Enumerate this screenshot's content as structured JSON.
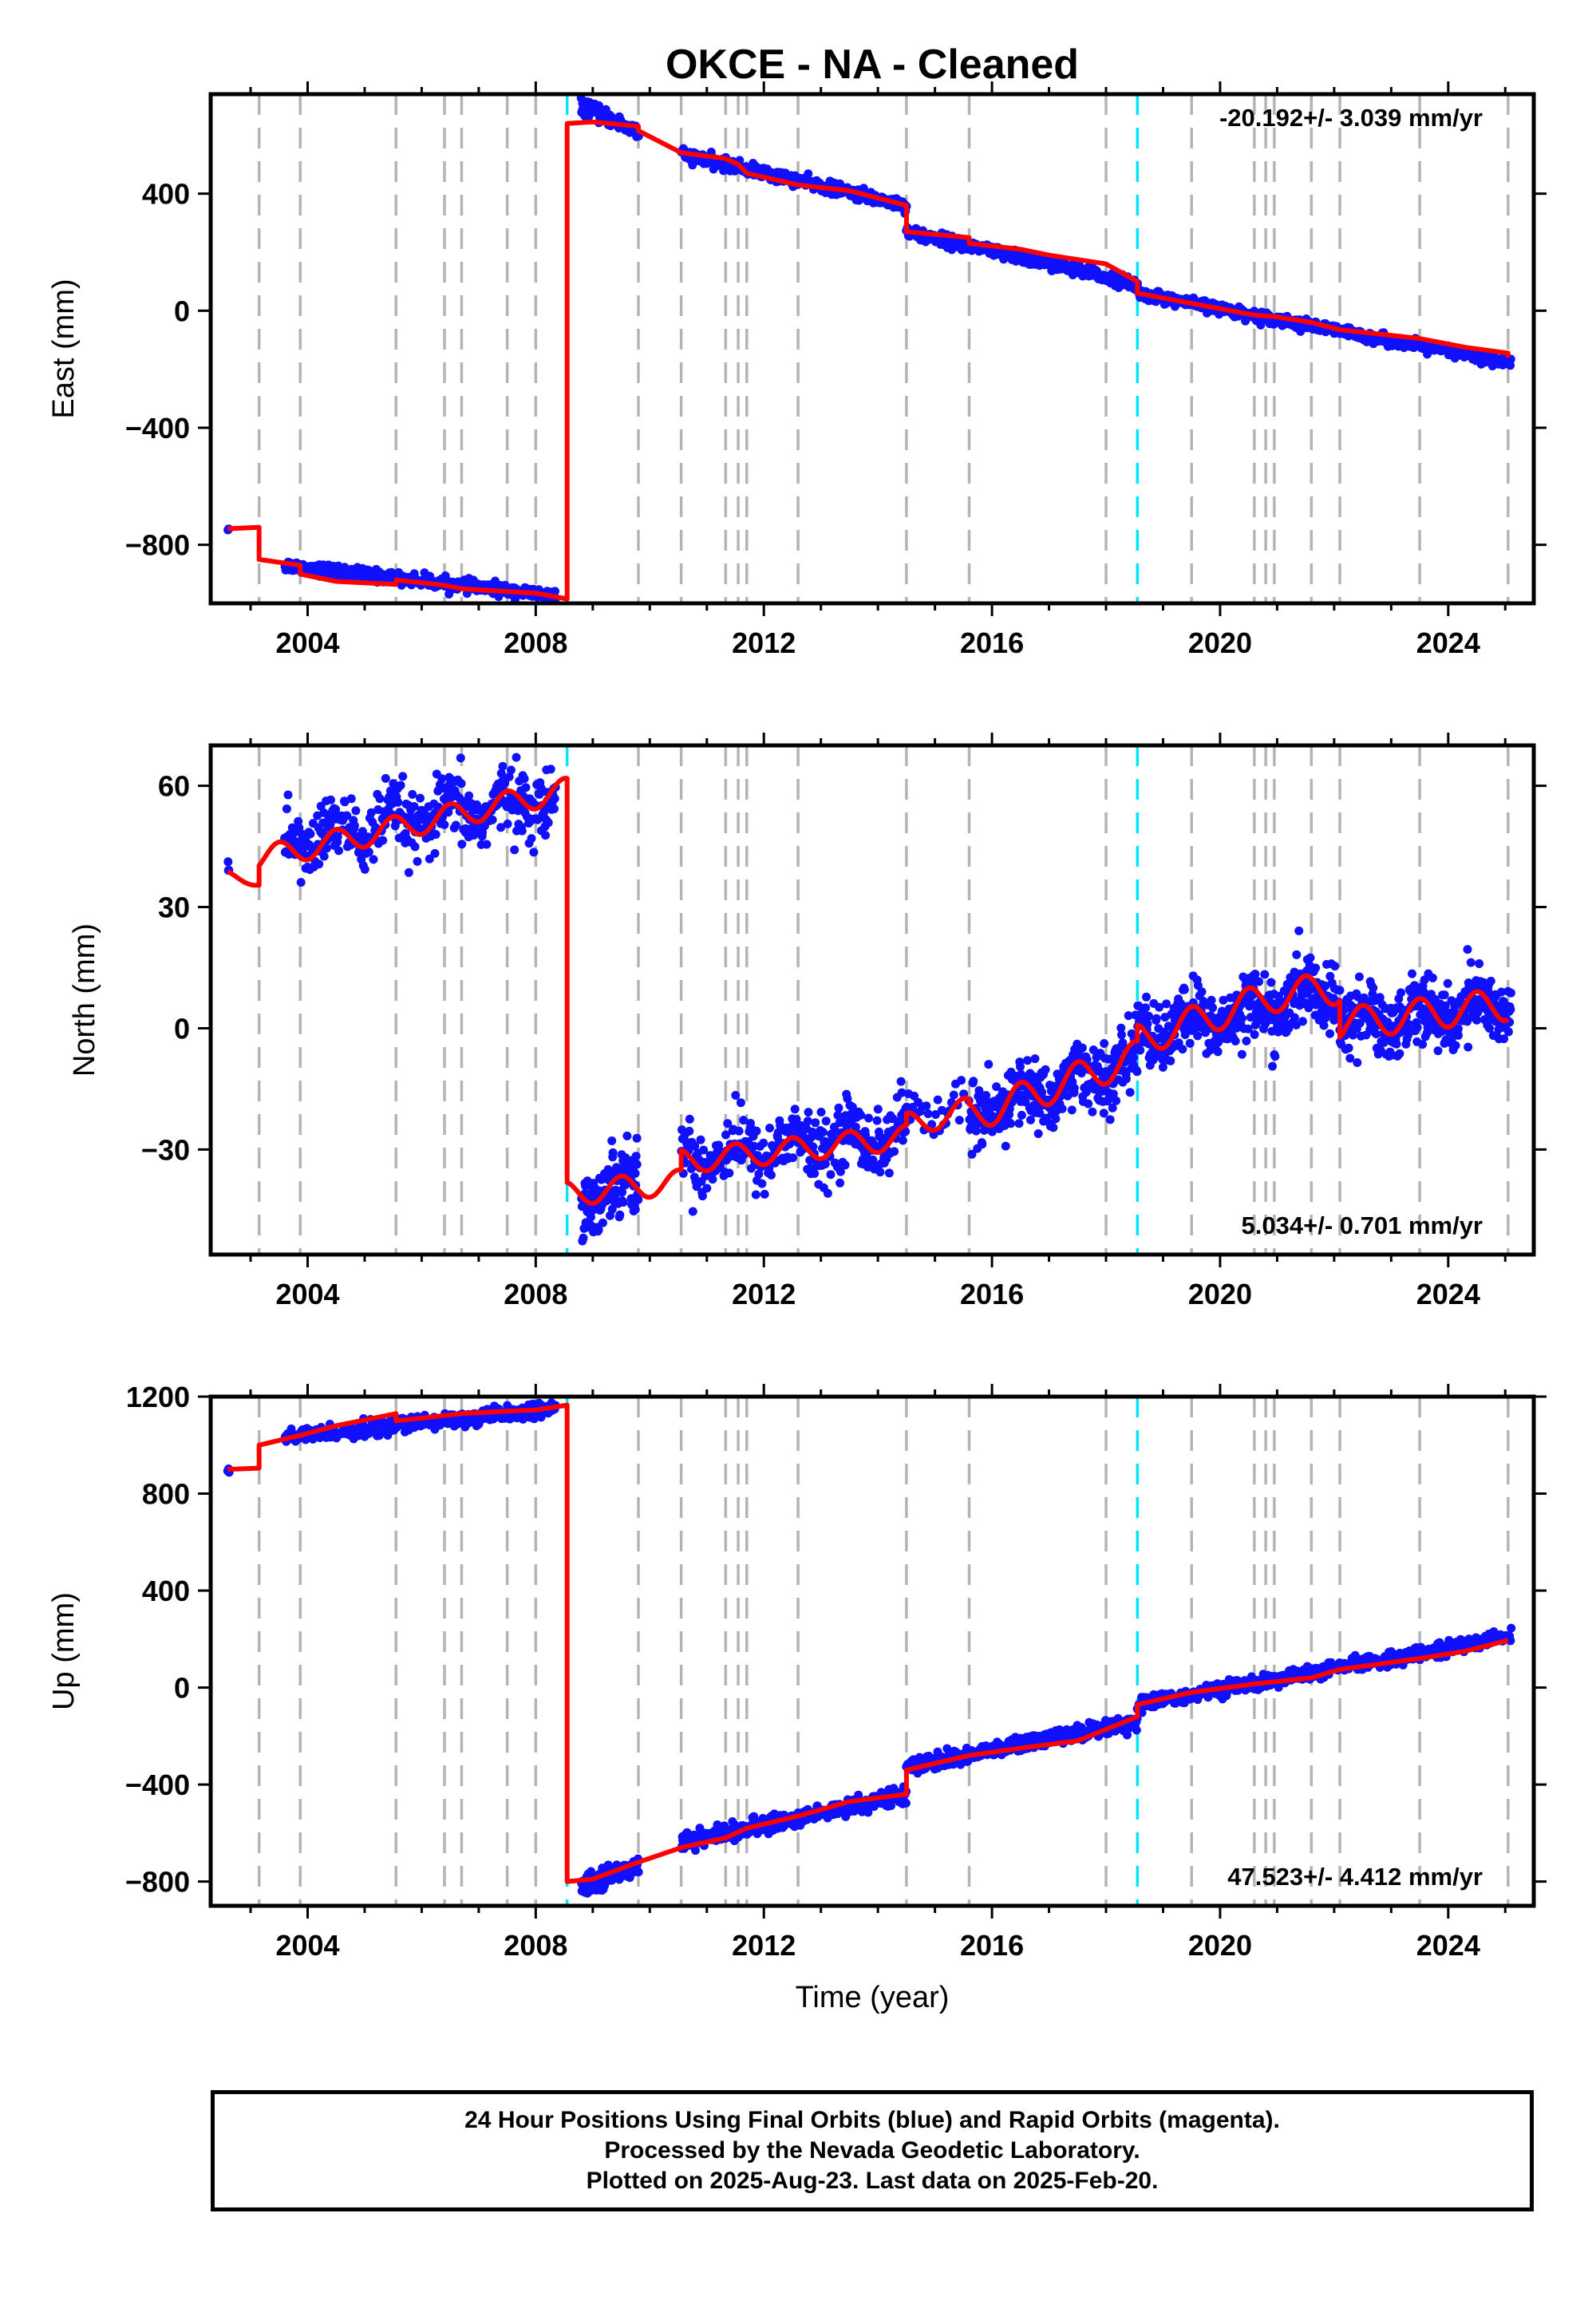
{
  "title": "OKCE  - NA - Cleaned",
  "xlabel": "Time (year)",
  "footer": [
    "24 Hour Positions Using Final Orbits (blue) and Rapid Orbits (magenta).",
    "Processed by the Nevada Geodetic Laboratory.",
    "Plotted on 2025-Aug-23. Last data on 2025-Feb-20."
  ],
  "colors": {
    "data": "#1010ff",
    "model": "#ff0000",
    "gray_event": "#b4b4b4",
    "cyan_event": "#00e5ff"
  },
  "chart_data": [
    {
      "type": "scatter",
      "name": "east",
      "ylabel": "East (mm)",
      "rate_label": "-20.192+/- 3.039 mm/yr",
      "xlim": [
        2002.3,
        2025.5
      ],
      "ylim": [
        -1000,
        740
      ],
      "xticks": [
        2004,
        2008,
        2012,
        2016,
        2020,
        2024
      ],
      "yticks": [
        400,
        0,
        -400,
        -800
      ],
      "ytick_labels": [
        "400",
        "0",
        "−400",
        "−800"
      ],
      "gray_lines": [
        2003.15,
        2003.87,
        2005.55,
        2006.4,
        2006.7,
        2007.5,
        2008.0,
        2009.8,
        2010.55,
        2011.33,
        2011.55,
        2011.7,
        2012.6,
        2014.5,
        2015.6,
        2018.0,
        2019.5,
        2020.6,
        2020.8,
        2020.95,
        2021.6,
        2022.1,
        2023.5,
        2025.05
      ],
      "cyan_lines": [
        2008.55,
        2018.55
      ],
      "model": [
        [
          2002.6,
          -745
        ],
        [
          2003.15,
          -740
        ],
        [
          2003.15,
          -850
        ],
        [
          2003.87,
          -870
        ],
        [
          2003.87,
          -900
        ],
        [
          2004.5,
          -925
        ],
        [
          2005.55,
          -935
        ],
        [
          2005.55,
          -920
        ],
        [
          2006.4,
          -938
        ],
        [
          2006.7,
          -950
        ],
        [
          2007.5,
          -960
        ],
        [
          2008.0,
          -965
        ],
        [
          2008.55,
          -985
        ],
        [
          2008.55,
          640
        ],
        [
          2009.0,
          645
        ],
        [
          2009.8,
          630
        ],
        [
          2009.8,
          615
        ],
        [
          2010.55,
          540
        ],
        [
          2011.33,
          520
        ],
        [
          2011.55,
          500
        ],
        [
          2011.7,
          470
        ],
        [
          2012.6,
          430
        ],
        [
          2013.5,
          410
        ],
        [
          2014.5,
          360
        ],
        [
          2014.5,
          270
        ],
        [
          2015.6,
          250
        ],
        [
          2015.6,
          230
        ],
        [
          2016.5,
          210
        ],
        [
          2017.0,
          190
        ],
        [
          2018.0,
          160
        ],
        [
          2018.55,
          100
        ],
        [
          2018.55,
          60
        ],
        [
          2019.5,
          25
        ],
        [
          2020.6,
          -15
        ],
        [
          2020.95,
          -20
        ],
        [
          2021.6,
          -40
        ],
        [
          2022.1,
          -65
        ],
        [
          2023.5,
          -95
        ],
        [
          2024.3,
          -125
        ],
        [
          2025.05,
          -145
        ],
        [
          2025.05,
          -160
        ]
      ],
      "data_segments": [
        {
          "t0": 2002.6,
          "t1": 2002.62,
          "y0": -745,
          "y1": -745,
          "sd": 4,
          "n": 3
        },
        {
          "t0": 2003.6,
          "t1": 2008.35,
          "y0": -870,
          "y1": -975,
          "sd": 10,
          "n": 380
        },
        {
          "t0": 2008.8,
          "t1": 2009.8,
          "y0": 700,
          "y1": 610,
          "sd": 12,
          "n": 120
        },
        {
          "t0": 2010.55,
          "t1": 2014.5,
          "y0": 535,
          "y1": 360,
          "sd": 10,
          "n": 380
        },
        {
          "t0": 2014.5,
          "t1": 2018.55,
          "y0": 270,
          "y1": 90,
          "sd": 10,
          "n": 380
        },
        {
          "t0": 2018.55,
          "t1": 2025.1,
          "y0": 60,
          "y1": -180,
          "sd": 9,
          "n": 560
        }
      ]
    },
    {
      "type": "scatter",
      "name": "north",
      "ylabel": "North (mm)",
      "rate_label": "5.034+/- 0.701 mm/yr",
      "xlim": [
        2002.3,
        2025.5
      ],
      "ylim": [
        -56,
        70
      ],
      "xticks": [
        2004,
        2008,
        2012,
        2016,
        2020,
        2024
      ],
      "yticks": [
        60,
        30,
        0,
        -30
      ],
      "ytick_labels": [
        "60",
        "30",
        "0",
        "−30"
      ],
      "gray_lines": [
        2003.15,
        2003.87,
        2005.55,
        2006.4,
        2006.7,
        2007.5,
        2008.0,
        2009.8,
        2010.55,
        2011.33,
        2011.55,
        2011.7,
        2012.6,
        2014.5,
        2015.6,
        2018.0,
        2019.5,
        2020.6,
        2020.8,
        2020.95,
        2021.6,
        2022.1,
        2023.5,
        2025.05
      ],
      "cyan_lines": [
        2008.55,
        2018.55
      ],
      "model_segments": [
        {
          "t0": 2002.6,
          "t1": 2003.15,
          "y0": 38,
          "y1": 36,
          "amp": 1
        },
        {
          "t0": 2003.15,
          "t1": 2008.55,
          "y0": 42,
          "y1": 59,
          "amp": 3
        },
        {
          "t0": 2008.55,
          "t1": 2010.55,
          "y0": -41,
          "y1": -38,
          "amp": 3
        },
        {
          "t0": 2010.55,
          "t1": 2014.5,
          "y0": -33,
          "y1": -27,
          "amp": 3
        },
        {
          "t0": 2014.5,
          "t1": 2015.6,
          "y0": -24,
          "y1": -20,
          "amp": 3
        },
        {
          "t0": 2015.6,
          "t1": 2018.55,
          "y0": -22,
          "y1": -7,
          "amp": 4
        },
        {
          "t0": 2018.55,
          "t1": 2020.95,
          "y0": -3,
          "y1": 8,
          "amp": 4
        },
        {
          "t0": 2020.95,
          "t1": 2022.1,
          "y0": 8,
          "y1": 10,
          "amp": 4
        },
        {
          "t0": 2022.1,
          "t1": 2025.05,
          "y0": 1,
          "y1": 6,
          "amp": 4
        }
      ],
      "data_segments": [
        {
          "t0": 2002.6,
          "t1": 2002.62,
          "y0": 38,
          "y1": 38,
          "sd": 1,
          "n": 3
        },
        {
          "t0": 2003.6,
          "t1": 2008.35,
          "y0": 46,
          "y1": 57,
          "sd": 4,
          "n": 420
        },
        {
          "t0": 2008.8,
          "t1": 2009.8,
          "y0": -41,
          "y1": -38,
          "sd": 4,
          "n": 140
        },
        {
          "t0": 2010.55,
          "t1": 2014.5,
          "y0": -32,
          "y1": -26,
          "sd": 4,
          "n": 360
        },
        {
          "t0": 2014.5,
          "t1": 2015.5,
          "y0": -22,
          "y1": -20,
          "sd": 3,
          "n": 30
        },
        {
          "t0": 2015.6,
          "t1": 2018.55,
          "y0": -22,
          "y1": -8,
          "sd": 4,
          "n": 340
        },
        {
          "t0": 2018.55,
          "t1": 2022.1,
          "y0": -2,
          "y1": 9,
          "sd": 4,
          "n": 420
        },
        {
          "t0": 2022.1,
          "t1": 2025.1,
          "y0": 1,
          "y1": 6,
          "sd": 4,
          "n": 380
        }
      ]
    },
    {
      "type": "scatter",
      "name": "up",
      "ylabel": "Up (mm)",
      "rate_label": "47.523+/- 4.412 mm/yr",
      "xlim": [
        2002.3,
        2025.5
      ],
      "ylim": [
        -900,
        1200
      ],
      "xticks": [
        2004,
        2008,
        2012,
        2016,
        2020,
        2024
      ],
      "yticks": [
        1200,
        800,
        400,
        0,
        -400,
        -800
      ],
      "ytick_labels": [
        "1200",
        "800",
        "400",
        "0",
        "−400",
        "−800"
      ],
      "gray_lines": [
        2003.15,
        2003.87,
        2005.55,
        2006.4,
        2006.7,
        2007.5,
        2008.0,
        2009.8,
        2010.55,
        2011.33,
        2011.55,
        2011.7,
        2012.6,
        2014.5,
        2015.6,
        2018.0,
        2019.5,
        2020.6,
        2020.8,
        2020.95,
        2021.6,
        2022.1,
        2023.5,
        2025.05
      ],
      "cyan_lines": [
        2008.55,
        2018.55
      ],
      "model": [
        [
          2002.6,
          900
        ],
        [
          2003.15,
          905
        ],
        [
          2003.15,
          1000
        ],
        [
          2003.87,
          1040
        ],
        [
          2004.5,
          1080
        ],
        [
          2005.55,
          1130
        ],
        [
          2005.55,
          1100
        ],
        [
          2006.7,
          1130
        ],
        [
          2007.5,
          1140
        ],
        [
          2008.0,
          1145
        ],
        [
          2008.55,
          1165
        ],
        [
          2008.55,
          -800
        ],
        [
          2009.0,
          -790
        ],
        [
          2009.8,
          -720
        ],
        [
          2010.55,
          -660
        ],
        [
          2011.33,
          -620
        ],
        [
          2011.7,
          -580
        ],
        [
          2012.6,
          -530
        ],
        [
          2013.5,
          -470
        ],
        [
          2014.5,
          -440
        ],
        [
          2014.5,
          -340
        ],
        [
          2015.6,
          -280
        ],
        [
          2016.5,
          -250
        ],
        [
          2017.5,
          -220
        ],
        [
          2018.55,
          -120
        ],
        [
          2018.55,
          -70
        ],
        [
          2019.5,
          -20
        ],
        [
          2020.6,
          15
        ],
        [
          2021.6,
          40
        ],
        [
          2022.1,
          75
        ],
        [
          2023.5,
          120
        ],
        [
          2024.3,
          150
        ],
        [
          2025.05,
          195
        ]
      ],
      "data_segments": [
        {
          "t0": 2002.6,
          "t1": 2002.62,
          "y0": 890,
          "y1": 890,
          "sd": 10,
          "n": 3
        },
        {
          "t0": 2003.6,
          "t1": 2008.35,
          "y0": 1030,
          "y1": 1150,
          "sd": 15,
          "n": 380
        },
        {
          "t0": 2008.8,
          "t1": 2009.8,
          "y0": -820,
          "y1": -730,
          "sd": 18,
          "n": 130
        },
        {
          "t0": 2010.55,
          "t1": 2014.5,
          "y0": -640,
          "y1": -440,
          "sd": 16,
          "n": 380
        },
        {
          "t0": 2014.5,
          "t1": 2018.55,
          "y0": -330,
          "y1": -140,
          "sd": 16,
          "n": 380
        },
        {
          "t0": 2018.55,
          "t1": 2025.1,
          "y0": -70,
          "y1": 210,
          "sd": 14,
          "n": 560
        }
      ]
    }
  ]
}
